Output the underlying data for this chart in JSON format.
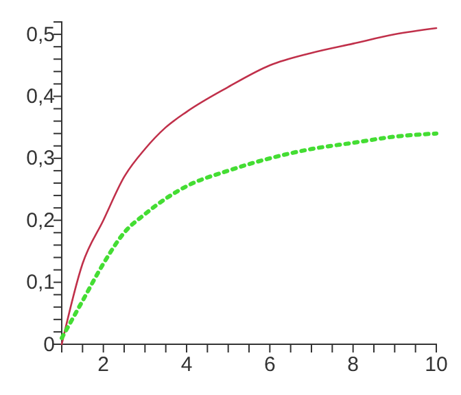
{
  "chart_data": {
    "type": "line",
    "xlim": [
      1,
      10
    ],
    "ylim": [
      0,
      0.52
    ],
    "xticks": [
      {
        "value": 1,
        "label": null
      },
      {
        "value": 1.5,
        "label": null
      },
      {
        "value": 2,
        "label": "2"
      },
      {
        "value": 2.5,
        "label": null
      },
      {
        "value": 3,
        "label": null
      },
      {
        "value": 3.5,
        "label": null
      },
      {
        "value": 4,
        "label": "4"
      },
      {
        "value": 4.5,
        "label": null
      },
      {
        "value": 5,
        "label": null
      },
      {
        "value": 5.5,
        "label": null
      },
      {
        "value": 6,
        "label": "6"
      },
      {
        "value": 6.5,
        "label": null
      },
      {
        "value": 7,
        "label": null
      },
      {
        "value": 7.5,
        "label": null
      },
      {
        "value": 8,
        "label": "8"
      },
      {
        "value": 8.5,
        "label": null
      },
      {
        "value": 9,
        "label": null
      },
      {
        "value": 9.5,
        "label": null
      },
      {
        "value": 10,
        "label": "10"
      }
    ],
    "yticks": [
      {
        "value": 0,
        "label": "0"
      },
      {
        "value": 0.02,
        "label": null
      },
      {
        "value": 0.04,
        "label": null
      },
      {
        "value": 0.06,
        "label": null
      },
      {
        "value": 0.08,
        "label": null
      },
      {
        "value": 0.1,
        "label": "0,1"
      },
      {
        "value": 0.12,
        "label": null
      },
      {
        "value": 0.14,
        "label": null
      },
      {
        "value": 0.16,
        "label": null
      },
      {
        "value": 0.18,
        "label": null
      },
      {
        "value": 0.2,
        "label": "0,2"
      },
      {
        "value": 0.22,
        "label": null
      },
      {
        "value": 0.24,
        "label": null
      },
      {
        "value": 0.26,
        "label": null
      },
      {
        "value": 0.28,
        "label": null
      },
      {
        "value": 0.3,
        "label": "0,3"
      },
      {
        "value": 0.32,
        "label": null
      },
      {
        "value": 0.34,
        "label": null
      },
      {
        "value": 0.36,
        "label": null
      },
      {
        "value": 0.38,
        "label": null
      },
      {
        "value": 0.4,
        "label": "0,4"
      },
      {
        "value": 0.42,
        "label": null
      },
      {
        "value": 0.44,
        "label": null
      },
      {
        "value": 0.46,
        "label": null
      },
      {
        "value": 0.48,
        "label": null
      },
      {
        "value": 0.5,
        "label": "0,5"
      }
    ],
    "x": [
      1,
      1.5,
      2,
      2.5,
      3,
      3.5,
      4,
      5,
      6,
      7,
      8,
      9,
      10
    ],
    "series": [
      {
        "color": "#c0304a",
        "line_style": "solid",
        "values": [
          0,
          0.13,
          0.2,
          0.27,
          0.315,
          0.35,
          0.375,
          0.415,
          0.45,
          0.47,
          0.485,
          0.5,
          0.51
        ]
      },
      {
        "color": "#44dd33",
        "line_style": "dotted",
        "values": [
          0.01,
          0.07,
          0.13,
          0.18,
          0.21,
          0.235,
          0.255,
          0.28,
          0.3,
          0.315,
          0.325,
          0.335,
          0.34
        ]
      }
    ]
  }
}
